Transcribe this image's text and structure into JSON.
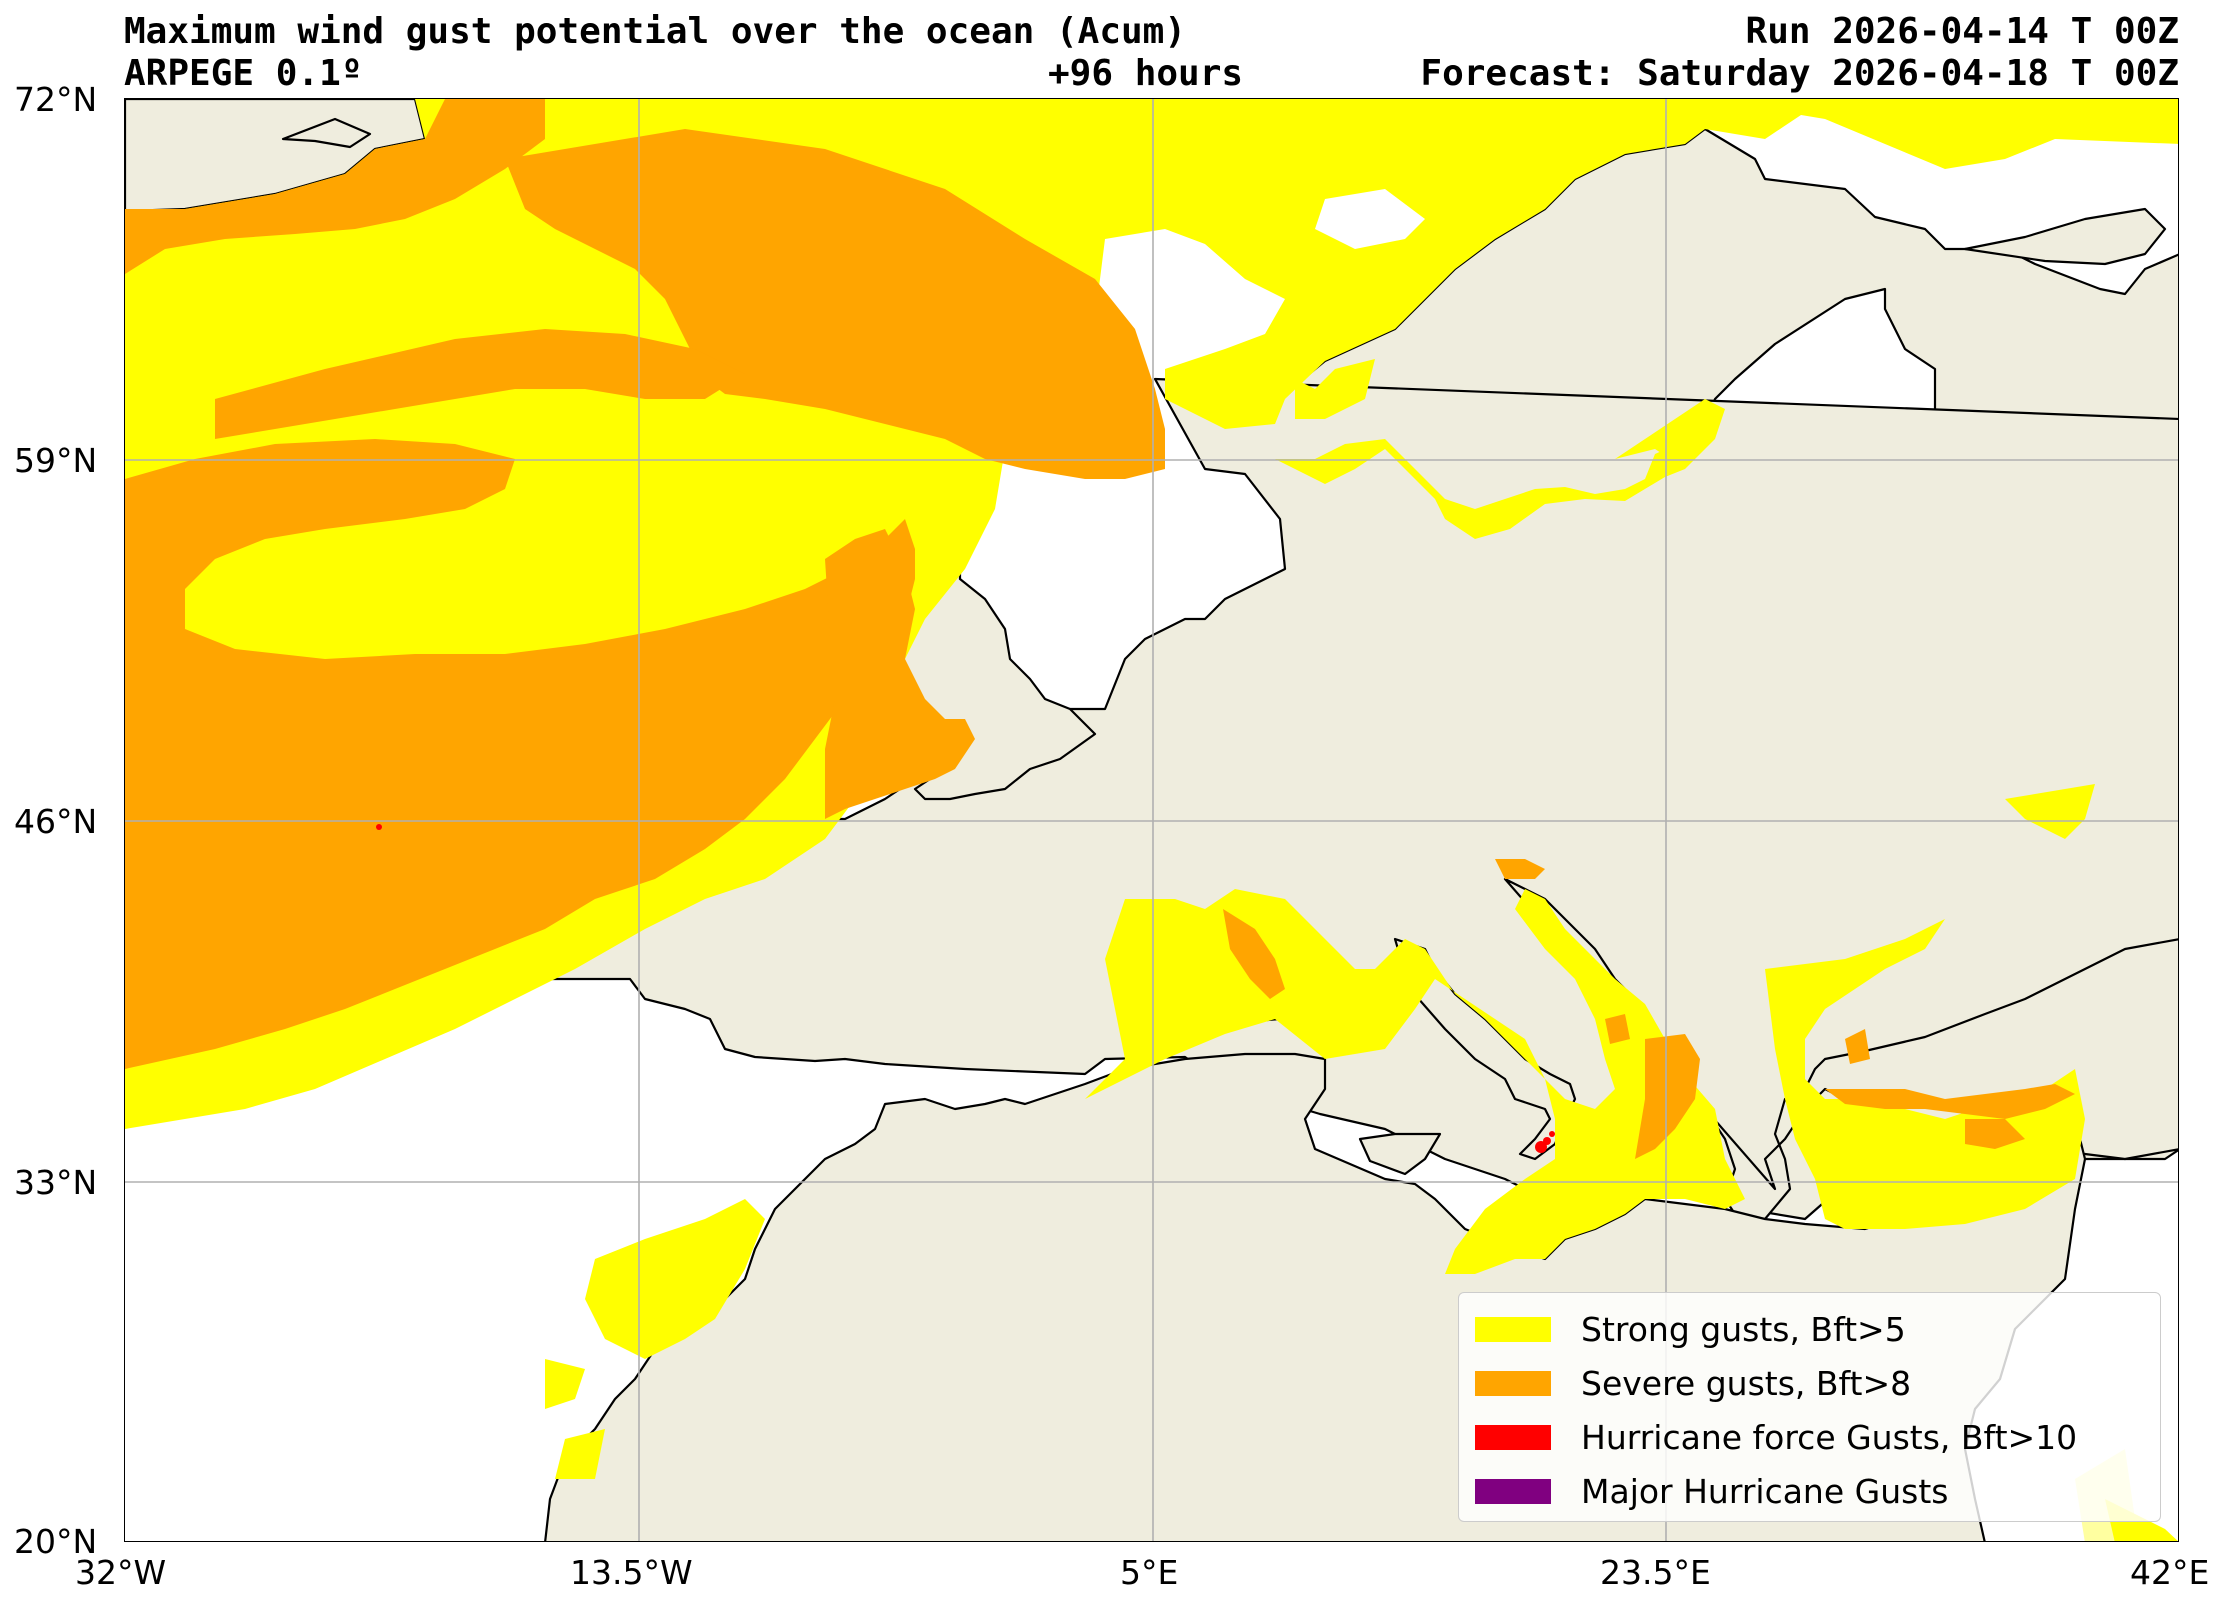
{
  "header": {
    "title_line1": "Maximum wind gust potential over the ocean (Acum)",
    "model": "ARPEGE 0.1º",
    "lead_time": "+96 hours",
    "run": "Run 2026-04-14 T 00Z",
    "forecast": "Forecast: Saturday 2026-04-18 T 00Z"
  },
  "map": {
    "lon_range": [
      -32,
      42
    ],
    "lat_range": [
      20,
      72
    ],
    "x_ticks": [
      "32°W",
      "13.5°W",
      "5°E",
      "23.5°E",
      "42°E"
    ],
    "y_ticks": [
      "72°N",
      "59°N",
      "46°N",
      "33°N",
      "20°N"
    ],
    "colors": {
      "land": "#efedde",
      "sea": "#ffffff",
      "strong": "#ffff00",
      "severe": "#ffa500",
      "hurricane": "#ff0000",
      "major": "#800080",
      "grid": "#b0b0b0",
      "coast": "#000000"
    }
  },
  "legend": {
    "items": [
      {
        "label": "Strong gusts, Bft>5",
        "color": "#ffff00"
      },
      {
        "label": "Severe gusts, Bft>8",
        "color": "#ffa500"
      },
      {
        "label": "Hurricane force Gusts, Bft>10",
        "color": "#ff0000"
      },
      {
        "label": "Major Hurricane Gusts",
        "color": "#800080"
      }
    ]
  }
}
